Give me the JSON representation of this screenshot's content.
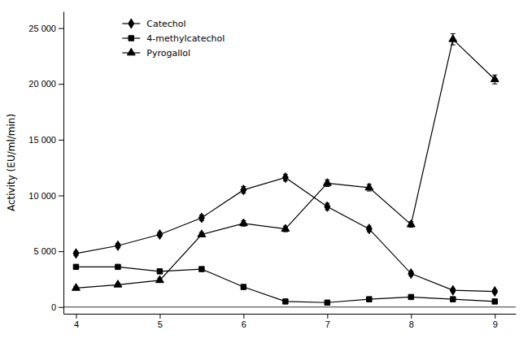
{
  "chart_data": {
    "type": "line",
    "ylabel": "Activity (EU/ml/min)",
    "x": [
      4.0,
      4.5,
      5.0,
      5.5,
      6.0,
      6.5,
      7.0,
      7.5,
      8.0,
      8.5,
      9.0
    ],
    "series": [
      {
        "name": "Catechol",
        "color": "#000000",
        "marker": "diamond",
        "values": [
          4800,
          5500,
          6500,
          8000,
          10500,
          11600,
          9000,
          7000,
          3000,
          1500,
          1400
        ],
        "errors": [
          200,
          200,
          200,
          250,
          300,
          300,
          300,
          250,
          200,
          150,
          150
        ]
      },
      {
        "name": "4-methylcatechol",
        "color": "#000000",
        "marker": "square",
        "values": [
          3600,
          3600,
          3200,
          3400,
          1800,
          500,
          400,
          700,
          900,
          700,
          500
        ],
        "errors": [
          150,
          150,
          150,
          150,
          150,
          100,
          100,
          100,
          100,
          100,
          100
        ]
      },
      {
        "name": "Pyrogallol",
        "color": "#000000",
        "marker": "triangle",
        "values": [
          1700,
          2000,
          2400,
          6500,
          7500,
          7000,
          11100,
          10700,
          7400,
          24000,
          20400
        ],
        "errors": [
          150,
          150,
          200,
          200,
          250,
          250,
          300,
          300,
          250,
          500,
          400
        ]
      }
    ],
    "xlim": [
      3.85,
      9.25
    ],
    "xticks": [
      4,
      5,
      6,
      7,
      8,
      9
    ],
    "ylim": [
      -600,
      26500
    ],
    "yticks": [
      0,
      {
        "value": 5000,
        "label": "5 000"
      },
      {
        "value": 10000,
        "label": "10 000"
      },
      {
        "value": 15000,
        "label": "15 000"
      },
      {
        "value": 20000,
        "label": "20 000"
      },
      {
        "value": 25000,
        "label": "25 000"
      }
    ],
    "grid": false,
    "legend": "upper left"
  }
}
